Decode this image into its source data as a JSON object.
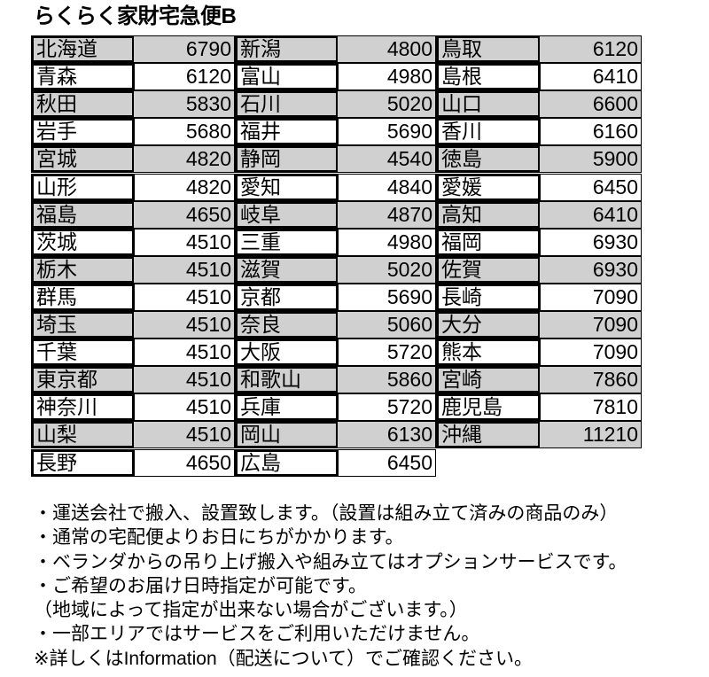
{
  "title": "らくらく家財宅急便B",
  "columns": [
    [
      [
        "北海道",
        "6790"
      ],
      [
        "青森",
        "6120"
      ],
      [
        "秋田",
        "5830"
      ],
      [
        "岩手",
        "5680"
      ],
      [
        "宮城",
        "4820"
      ],
      [
        "山形",
        "4820"
      ],
      [
        "福島",
        "4650"
      ],
      [
        "茨城",
        "4510"
      ],
      [
        "栃木",
        "4510"
      ],
      [
        "群馬",
        "4510"
      ],
      [
        "埼玉",
        "4510"
      ],
      [
        "千葉",
        "4510"
      ],
      [
        "東京都",
        "4510"
      ],
      [
        "神奈川",
        "4510"
      ],
      [
        "山梨",
        "4510"
      ],
      [
        "長野",
        "4650"
      ]
    ],
    [
      [
        "新潟",
        "4800"
      ],
      [
        "富山",
        "4980"
      ],
      [
        "石川",
        "5020"
      ],
      [
        "福井",
        "5690"
      ],
      [
        "静岡",
        "4540"
      ],
      [
        "愛知",
        "4840"
      ],
      [
        "岐阜",
        "4870"
      ],
      [
        "三重",
        "4980"
      ],
      [
        "滋賀",
        "5020"
      ],
      [
        "京都",
        "5690"
      ],
      [
        "奈良",
        "5060"
      ],
      [
        "大阪",
        "5720"
      ],
      [
        "和歌山",
        "5860"
      ],
      [
        "兵庫",
        "5720"
      ],
      [
        "岡山",
        "6130"
      ],
      [
        "広島",
        "6450"
      ]
    ],
    [
      [
        "鳥取",
        "6120"
      ],
      [
        "島根",
        "6410"
      ],
      [
        "山口",
        "6600"
      ],
      [
        "香川",
        "6160"
      ],
      [
        "徳島",
        "5900"
      ],
      [
        "愛媛",
        "6450"
      ],
      [
        "高知",
        "6410"
      ],
      [
        "福岡",
        "6930"
      ],
      [
        "佐賀",
        "6930"
      ],
      [
        "長崎",
        "7090"
      ],
      [
        "大分",
        "7090"
      ],
      [
        "熊本",
        "7090"
      ],
      [
        "宮崎",
        "7860"
      ],
      [
        "鹿児島",
        "7810"
      ],
      [
        "沖縄",
        "11210"
      ]
    ]
  ],
  "colors": {
    "shade": "#d0d0d0"
  },
  "notes": [
    "・運送会社で搬入、設置致します。（設置は組み立て済みの商品のみ）",
    "・通常の宅配便よりお日にちがかかります。",
    "・ベランダからの吊り上げ搬入や組み立てはオプションサービスです。",
    "・ご希望のお届け日時指定が可能です。",
    "（地域によって指定が出来ない場合がございます。）",
    "・一部エリアではサービスをご利用いただけません。",
    "※詳しくはInformation（配送について）でご確認ください。"
  ]
}
